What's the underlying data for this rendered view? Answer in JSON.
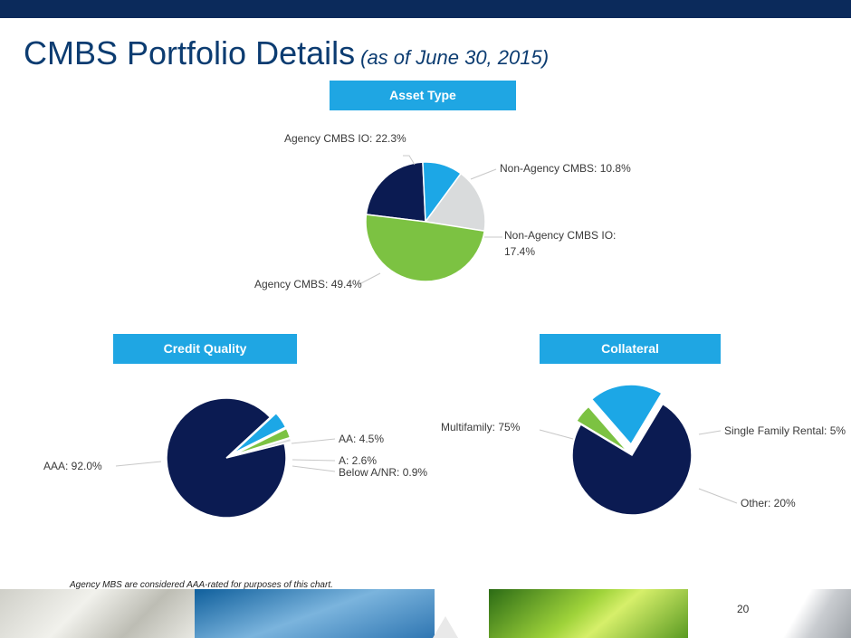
{
  "title": {
    "main": "CMBS Portfolio Details",
    "sub": "(as of June 30, 2015)"
  },
  "footnote": "Agency MBS are considered AAA-rated for purposes of this chart.",
  "page_number": "20",
  "colors": {
    "navy": "#0b1b52",
    "green": "#7cc242",
    "lightblue": "#1ca7e6",
    "lightgray": "#d9dbdc",
    "header_blue": "#1fa6e3"
  },
  "chart_data": [
    {
      "type": "pie",
      "title": "Asset Type",
      "slices": [
        {
          "label": "Agency CMBS IO: 22.3%",
          "value": 22.3,
          "color": "#0b1b52"
        },
        {
          "label": "Non-Agency CMBS: 10.8%",
          "value": 10.8,
          "color": "#1ca7e6"
        },
        {
          "label": "Non-Agency CMBS IO:",
          "label2": "17.4%",
          "value": 17.4,
          "color": "#d9dbdc"
        },
        {
          "label": "Agency CMBS: 49.4%",
          "value": 49.4,
          "color": "#7cc242"
        }
      ]
    },
    {
      "type": "pie",
      "title": "Credit Quality",
      "slices": [
        {
          "label": "AAA: 92.0%",
          "value": 92.0,
          "color": "#0b1b52"
        },
        {
          "label": "AA: 4.5%",
          "value": 4.5,
          "color": "#1ca7e6"
        },
        {
          "label": "A: 2.6%",
          "value": 2.6,
          "color": "#7cc242"
        },
        {
          "label": "Below A/NR: 0.9%",
          "value": 0.9,
          "color": "#d9dbdc"
        }
      ]
    },
    {
      "type": "pie",
      "title": "Collateral",
      "slices": [
        {
          "label": "Multifamily: 75%",
          "value": 75,
          "color": "#0b1b52"
        },
        {
          "label": "Single Family Rental: 5%",
          "value": 5,
          "color": "#7cc242"
        },
        {
          "label": "Other: 20%",
          "value": 20,
          "color": "#1ca7e6"
        }
      ]
    }
  ]
}
